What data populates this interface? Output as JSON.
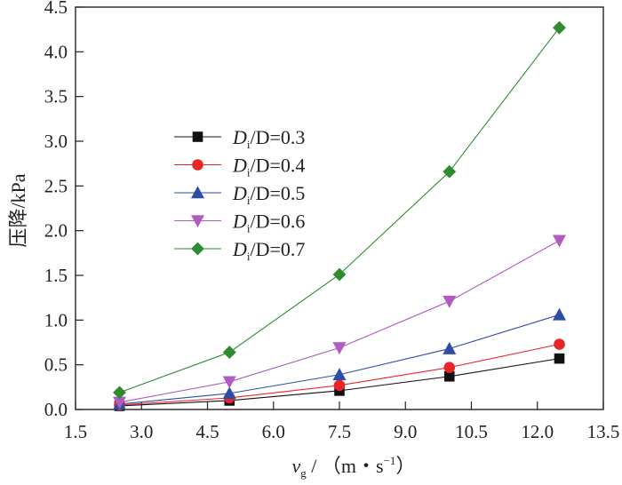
{
  "chart_data": {
    "type": "line",
    "x": [
      2.5,
      5.0,
      7.5,
      10.0,
      12.5
    ],
    "series": [
      {
        "name": "Di/D=0.3",
        "label_d": "D",
        "label_sub": "i",
        "label_rest": "/D=0.3",
        "color": "#111111",
        "marker": "square",
        "values": [
          0.04,
          0.1,
          0.21,
          0.37,
          0.57
        ]
      },
      {
        "name": "Di/D=0.4",
        "label_d": "D",
        "label_sub": "i",
        "label_rest": "/D=0.4",
        "color": "#e8262a",
        "marker": "circle",
        "values": [
          0.05,
          0.13,
          0.27,
          0.47,
          0.73
        ]
      },
      {
        "name": "Di/D=0.5",
        "label_d": "D",
        "label_sub": "i",
        "label_rest": "/D=0.5",
        "color": "#2e4ea4",
        "marker": "triangle-up",
        "values": [
          0.06,
          0.18,
          0.39,
          0.68,
          1.06
        ]
      },
      {
        "name": "Di/D=0.6",
        "label_d": "D",
        "label_sub": "i",
        "label_rest": "/D=0.6",
        "color": "#b05cc0",
        "marker": "triangle-down",
        "values": [
          0.08,
          0.31,
          0.69,
          1.21,
          1.89
        ]
      },
      {
        "name": "Di/D=0.7",
        "label_d": "D",
        "label_sub": "i",
        "label_rest": "/D=0.7",
        "color": "#2e8b2e",
        "marker": "diamond",
        "values": [
          0.19,
          0.64,
          1.51,
          2.66,
          4.27
        ]
      }
    ],
    "xlim": [
      1.5,
      13.5
    ],
    "ylim": [
      0,
      4.5
    ],
    "xticks": [
      1.5,
      3.0,
      4.5,
      6.0,
      7.5,
      9.0,
      10.5,
      12.0,
      13.5
    ],
    "yticks": [
      0.0,
      0.5,
      1.0,
      1.5,
      2.0,
      2.5,
      3.0,
      3.5,
      4.0,
      4.5
    ],
    "xtick_labels": [
      "1.5",
      "3.0",
      "4.5",
      "6.0",
      "7.5",
      "9.0",
      "10.5",
      "12.0",
      "13.5"
    ],
    "ytick_labels": [
      "0.0",
      "0.5",
      "1.0",
      "1.5",
      "2.0",
      "2.5",
      "3.0",
      "3.5",
      "4.0",
      "4.5"
    ],
    "ylabel": "压降/kPa",
    "xlabel": {
      "var": "v",
      "sub": "g",
      "unit_open": " / （m・s",
      "unit_sup": "−1",
      "unit_close": "）"
    },
    "legend_position": "upper-left",
    "grid": false
  }
}
